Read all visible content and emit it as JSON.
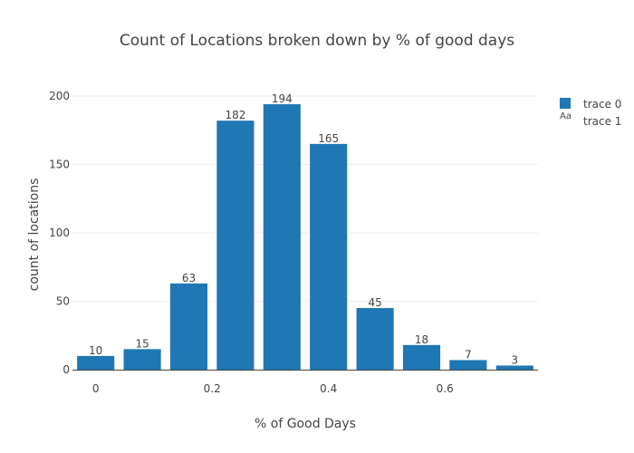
{
  "chart_data": {
    "type": "bar",
    "title": "Count of Locations broken down by % of good days",
    "xlabel": "% of Good Days",
    "ylabel": "count of locations",
    "x": [
      0,
      0.08,
      0.16,
      0.24,
      0.32,
      0.4,
      0.48,
      0.56,
      0.64,
      0.72
    ],
    "values": [
      10,
      15,
      63,
      182,
      194,
      165,
      45,
      18,
      7,
      3
    ],
    "data_labels": [
      "10",
      "15",
      "63",
      "182",
      "194",
      "165",
      "45",
      "18",
      "7",
      "3"
    ],
    "xlim": [
      -0.04,
      0.76
    ],
    "ylim": [
      0,
      210
    ],
    "x_ticks": [
      0,
      0.2,
      0.4,
      0.6
    ],
    "x_tick_labels": [
      "0",
      "0.2",
      "0.4",
      "0.6"
    ],
    "y_ticks": [
      0,
      50,
      100,
      150,
      200
    ],
    "y_tick_labels": [
      "0",
      "50",
      "100",
      "150",
      "200"
    ],
    "bar_color": "#1f77b4",
    "grid": true,
    "legend": {
      "placement": "top-right",
      "entries": [
        {
          "name": "trace 0",
          "marker": "square",
          "color": "#1f77b4"
        },
        {
          "name": "trace 1",
          "marker": "text",
          "marker_text": "Aa"
        }
      ]
    }
  }
}
